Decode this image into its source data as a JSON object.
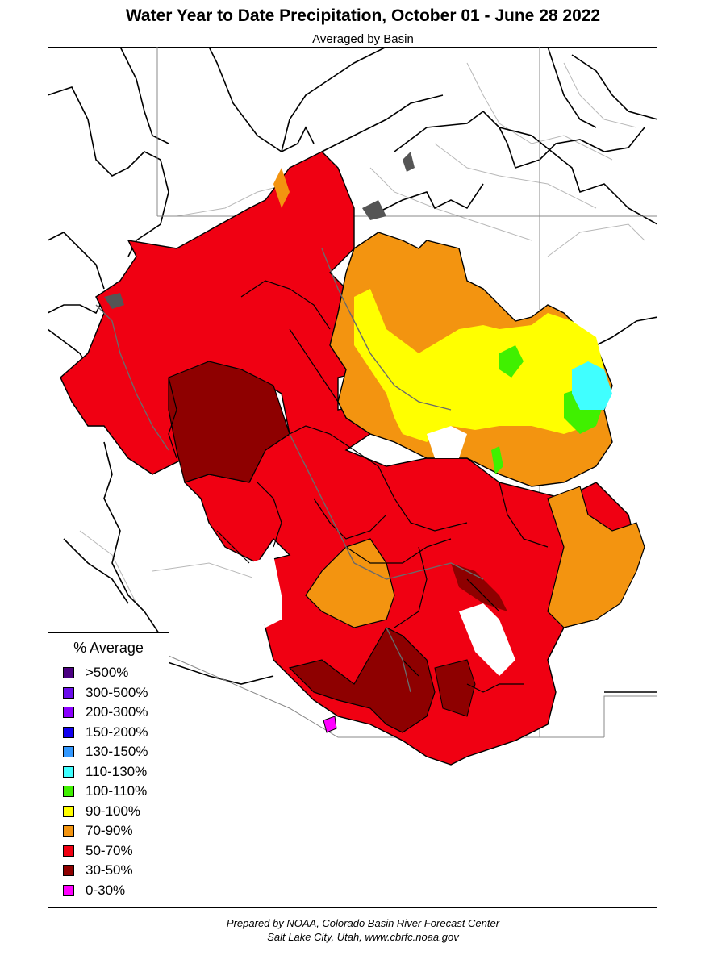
{
  "header": {
    "title": "Water Year to Date Precipitation, October 01  - June 28 2022",
    "subtitle": "Averaged by Basin"
  },
  "legend": {
    "title": "% Average",
    "items": [
      {
        "label": ">500%",
        "color": "#4B0082"
      },
      {
        "label": "300-500%",
        "color": "#6A0DEB"
      },
      {
        "label": "200-300%",
        "color": "#8A00FF"
      },
      {
        "label": "150-200%",
        "color": "#1200F0"
      },
      {
        "label": "130-150%",
        "color": "#3399FF"
      },
      {
        "label": "110-130%",
        "color": "#40FFFF"
      },
      {
        "label": "100-110%",
        "color": "#40F000"
      },
      {
        "label": "90-100%",
        "color": "#FFFF00"
      },
      {
        "label": "70-90%",
        "color": "#F39410"
      },
      {
        "label": "50-70%",
        "color": "#F00012"
      },
      {
        "label": "30-50%",
        "color": "#8E0000"
      },
      {
        "label": "0-30%",
        "color": "#FF00FF"
      }
    ]
  },
  "credits": {
    "line1": "Prepared by NOAA, Colorado Basin River Forecast Center",
    "line2": "Salt Lake City, Utah, www.cbrfc.noaa.gov"
  }
}
